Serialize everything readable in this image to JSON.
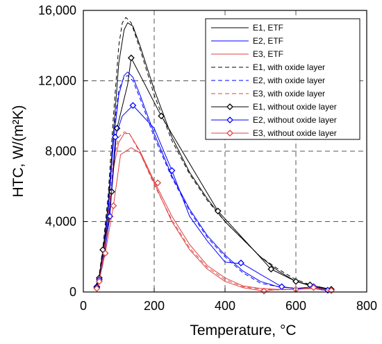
{
  "chart_data": {
    "type": "line",
    "title": "",
    "xlabel": "Temperature, ",
    "xlabel_unit": "°C",
    "ylabel": "HTC, W/(m²K)",
    "xlim": [
      0,
      800
    ],
    "ylim": [
      0,
      16000
    ],
    "xticks": [
      0,
      200,
      400,
      600,
      800
    ],
    "xtick_labels": [
      "0",
      "200",
      "400",
      "600",
      "800"
    ],
    "yticks": [
      0,
      4000,
      8000,
      12000,
      16000
    ],
    "ytick_labels": [
      "0",
      "4,000",
      "8,000",
      "12,000",
      "16,000"
    ],
    "grid": "dashed",
    "legend_position": "top-right",
    "series": [
      {
        "name": "E1, ETF",
        "color": "#000000",
        "style": "solid",
        "marker": "none",
        "points": [
          [
            35,
            300
          ],
          [
            45,
            900
          ],
          [
            55,
            2200
          ],
          [
            70,
            5000
          ],
          [
            85,
            9000
          ],
          [
            100,
            13000
          ],
          [
            115,
            14900
          ],
          [
            125,
            15300
          ],
          [
            140,
            15100
          ],
          [
            160,
            14000
          ],
          [
            200,
            11500
          ],
          [
            250,
            8800
          ],
          [
            300,
            6800
          ],
          [
            350,
            5300
          ],
          [
            400,
            4000
          ],
          [
            450,
            3000
          ],
          [
            500,
            2000
          ],
          [
            550,
            1200
          ],
          [
            600,
            600
          ],
          [
            650,
            300
          ],
          [
            700,
            120
          ]
        ]
      },
      {
        "name": "E2, ETF",
        "color": "#0000ff",
        "style": "solid",
        "marker": "none",
        "points": [
          [
            35,
            250
          ],
          [
            45,
            800
          ],
          [
            55,
            2000
          ],
          [
            70,
            4500
          ],
          [
            85,
            8500
          ],
          [
            100,
            11200
          ],
          [
            115,
            12300
          ],
          [
            125,
            12500
          ],
          [
            140,
            12200
          ],
          [
            160,
            11200
          ],
          [
            200,
            9000
          ],
          [
            250,
            6600
          ],
          [
            300,
            4700
          ],
          [
            350,
            3200
          ],
          [
            400,
            2100
          ],
          [
            450,
            1200
          ],
          [
            500,
            600
          ],
          [
            550,
            300
          ],
          [
            600,
            200
          ],
          [
            650,
            200
          ],
          [
            680,
            100
          ]
        ]
      },
      {
        "name": "E3, ETF",
        "color": "#e04040",
        "style": "solid",
        "marker": "none",
        "points": [
          [
            35,
            200
          ],
          [
            45,
            700
          ],
          [
            55,
            1800
          ],
          [
            70,
            4000
          ],
          [
            85,
            7000
          ],
          [
            100,
            8500
          ],
          [
            115,
            9000
          ],
          [
            130,
            9000
          ],
          [
            160,
            8000
          ],
          [
            200,
            6300
          ],
          [
            250,
            4300
          ],
          [
            300,
            2700
          ],
          [
            350,
            1500
          ],
          [
            400,
            800
          ],
          [
            450,
            350
          ],
          [
            500,
            200
          ],
          [
            550,
            150
          ],
          [
            600,
            150
          ],
          [
            650,
            200
          ],
          [
            690,
            80
          ]
        ]
      },
      {
        "name": "E1, with oxide layer",
        "color": "#000000",
        "style": "dashed",
        "marker": "none",
        "points": [
          [
            35,
            300
          ],
          [
            45,
            1000
          ],
          [
            55,
            2500
          ],
          [
            70,
            5500
          ],
          [
            85,
            10000
          ],
          [
            100,
            14000
          ],
          [
            110,
            15300
          ],
          [
            120,
            15600
          ],
          [
            135,
            15300
          ],
          [
            160,
            13800
          ],
          [
            200,
            11200
          ],
          [
            250,
            8600
          ],
          [
            300,
            6700
          ],
          [
            350,
            5200
          ],
          [
            400,
            4000
          ],
          [
            450,
            3000
          ],
          [
            500,
            2000
          ],
          [
            550,
            1300
          ],
          [
            600,
            700
          ],
          [
            650,
            350
          ],
          [
            700,
            150
          ]
        ]
      },
      {
        "name": "E2, with oxide layer",
        "color": "#0000ff",
        "style": "dashed",
        "marker": "none",
        "points": [
          [
            35,
            250
          ],
          [
            45,
            850
          ],
          [
            55,
            2100
          ],
          [
            70,
            4800
          ],
          [
            85,
            9000
          ],
          [
            100,
            11500
          ],
          [
            115,
            12200
          ],
          [
            125,
            12300
          ],
          [
            140,
            12000
          ],
          [
            160,
            11000
          ],
          [
            200,
            8800
          ],
          [
            250,
            6500
          ],
          [
            300,
            4600
          ],
          [
            350,
            3100
          ],
          [
            400,
            2000
          ],
          [
            450,
            1100
          ],
          [
            500,
            500
          ],
          [
            550,
            300
          ],
          [
            600,
            200
          ],
          [
            650,
            200
          ],
          [
            680,
            100
          ]
        ]
      },
      {
        "name": "E3, with oxide layer",
        "color": "#e04040",
        "style": "dashed",
        "marker": "none",
        "points": [
          [
            35,
            200
          ],
          [
            45,
            750
          ],
          [
            55,
            1900
          ],
          [
            70,
            4200
          ],
          [
            85,
            7500
          ],
          [
            100,
            8800
          ],
          [
            115,
            9100
          ],
          [
            130,
            9000
          ],
          [
            160,
            7900
          ],
          [
            200,
            6100
          ],
          [
            250,
            4100
          ],
          [
            300,
            2500
          ],
          [
            350,
            1400
          ],
          [
            400,
            700
          ],
          [
            450,
            300
          ],
          [
            500,
            150
          ],
          [
            550,
            120
          ],
          [
            600,
            150
          ],
          [
            650,
            200
          ],
          [
            690,
            80
          ]
        ]
      },
      {
        "name": "E1, without oxide layer",
        "color": "#000000",
        "style": "solid",
        "marker": "diamond",
        "points": [
          [
            38,
            300
          ],
          [
            45,
            800
          ],
          [
            55,
            2400
          ],
          [
            70,
            3900
          ],
          [
            80,
            5700
          ],
          [
            95,
            9300
          ],
          [
            125,
            11800
          ],
          [
            135,
            13300
          ],
          [
            220,
            10000
          ],
          [
            380,
            4600
          ],
          [
            530,
            1300
          ],
          [
            600,
            600
          ],
          [
            640,
            400
          ],
          [
            700,
            150
          ]
        ],
        "marker_points": [
          [
            38,
            300
          ],
          [
            45,
            800
          ],
          [
            55,
            2400
          ],
          [
            80,
            5700
          ],
          [
            95,
            9300
          ],
          [
            135,
            13300
          ],
          [
            220,
            10000
          ],
          [
            380,
            4600
          ],
          [
            530,
            1300
          ],
          [
            600,
            600
          ],
          [
            640,
            400
          ],
          [
            700,
            150
          ]
        ]
      },
      {
        "name": "E2, without oxide layer",
        "color": "#0000ff",
        "style": "solid",
        "marker": "diamond",
        "points": [
          [
            38,
            250
          ],
          [
            45,
            700
          ],
          [
            55,
            1600
          ],
          [
            75,
            4300
          ],
          [
            90,
            8800
          ],
          [
            110,
            10000
          ],
          [
            140,
            10600
          ],
          [
            200,
            9300
          ],
          [
            250,
            6900
          ],
          [
            300,
            4300
          ],
          [
            350,
            2900
          ],
          [
            400,
            1700
          ],
          [
            450,
            1600
          ],
          [
            500,
            1000
          ],
          [
            560,
            300
          ],
          [
            600,
            200
          ],
          [
            650,
            300
          ],
          [
            690,
            100
          ]
        ],
        "marker_points": [
          [
            38,
            250
          ],
          [
            45,
            700
          ],
          [
            75,
            4300
          ],
          [
            90,
            8800
          ],
          [
            140,
            10600
          ],
          [
            250,
            6900
          ],
          [
            445,
            1650
          ],
          [
            560,
            300
          ],
          [
            650,
            300
          ],
          [
            690,
            100
          ]
        ]
      },
      {
        "name": "E3, without oxide layer",
        "color": "#e04040",
        "style": "solid",
        "marker": "diamond",
        "points": [
          [
            38,
            200
          ],
          [
            45,
            600
          ],
          [
            52,
            1400
          ],
          [
            62,
            2200
          ],
          [
            85,
            4900
          ],
          [
            105,
            7800
          ],
          [
            135,
            8200
          ],
          [
            160,
            7900
          ],
          [
            200,
            6200
          ],
          [
            250,
            4000
          ],
          [
            300,
            2400
          ],
          [
            350,
            1300
          ],
          [
            400,
            600
          ],
          [
            450,
            250
          ],
          [
            510,
            50
          ],
          [
            550,
            150
          ],
          [
            600,
            150
          ],
          [
            650,
            250
          ],
          [
            700,
            80
          ]
        ],
        "marker_points": [
          [
            38,
            200
          ],
          [
            45,
            600
          ],
          [
            62,
            2200
          ],
          [
            85,
            4900
          ],
          [
            210,
            6200
          ],
          [
            510,
            50
          ],
          [
            600,
            150
          ],
          [
            650,
            250
          ],
          [
            700,
            80
          ]
        ]
      }
    ]
  }
}
